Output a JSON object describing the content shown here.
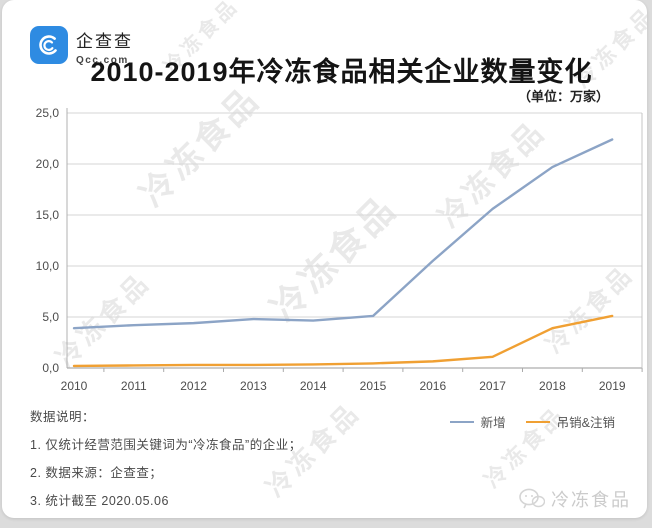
{
  "brand": {
    "name": "企查查",
    "domain": "Qcc.com",
    "logo_color": "#2E8BE2"
  },
  "title": "2010-2019年冷冻食品相关企业数量变化",
  "unit_label": "（单位：万家）",
  "chart_data": {
    "type": "line",
    "title": "2010-2019年冷冻食品相关企业数量变化",
    "unit": "万家",
    "categories": [
      "2010",
      "2011",
      "2012",
      "2013",
      "2014",
      "2015",
      "2016",
      "2017",
      "2018",
      "2019"
    ],
    "series": [
      {
        "name": "新增",
        "color": "#8CA4C6",
        "values": [
          3.9,
          4.2,
          4.4,
          4.8,
          4.65,
          5.1,
          10.5,
          15.6,
          19.7,
          22.4
        ]
      },
      {
        "name": "吊销&注销",
        "color": "#F0A033",
        "values": [
          0.2,
          0.25,
          0.3,
          0.3,
          0.35,
          0.45,
          0.65,
          1.1,
          3.9,
          5.1
        ]
      }
    ],
    "ylim": [
      0,
      25
    ],
    "yticks": [
      0,
      5,
      10,
      15,
      20,
      25
    ],
    "ytick_labels": [
      "0,0",
      "5,0",
      "10,0",
      "15,0",
      "20,0",
      "25,0"
    ],
    "grid": true,
    "legend_position": "bottom-right"
  },
  "notes": {
    "heading": "数据说明：",
    "items": [
      "1. 仅统计经营范围关键词为“冷冻食品”的企业；",
      "2. 数据来源：企查查；",
      "3. 统计截至 2020.05.06"
    ]
  },
  "footer": {
    "account_name": "冷冻食品"
  },
  "watermark": {
    "text": "冷冻食品"
  }
}
